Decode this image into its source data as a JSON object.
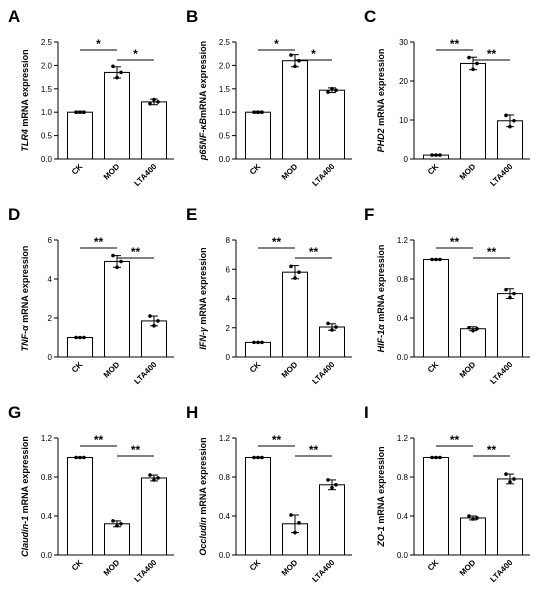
{
  "chart_data": [
    {
      "type": "bar",
      "panel_label": "A",
      "ylabel": {
        "gene": "TLR4",
        "rest": " mRNA expression"
      },
      "categories": [
        "CK",
        "MOD",
        "LTA400"
      ],
      "values": [
        1.0,
        1.85,
        1.22
      ],
      "errors": [
        0.02,
        0.12,
        0.06
      ],
      "points": [
        [
          1.0,
          1.0,
          1.0
        ],
        [
          1.98,
          1.74,
          1.85
        ],
        [
          1.18,
          1.27,
          1.22
        ]
      ],
      "ylim": [
        0,
        2.5
      ],
      "yticks": [
        "0.0",
        "0.5",
        "1.0",
        "1.5",
        "2.0",
        "2.5"
      ],
      "significance": [
        {
          "from": 0,
          "to": 1,
          "label": "*"
        },
        {
          "from": 1,
          "to": 2,
          "label": "*"
        }
      ]
    },
    {
      "type": "bar",
      "panel_label": "B",
      "ylabel": {
        "gene": "p65NF-κB",
        "rest": "mRNA expression"
      },
      "categories": [
        "CK",
        "MOD",
        "LTA400"
      ],
      "values": [
        1.0,
        2.1,
        1.47
      ],
      "errors": [
        0.02,
        0.13,
        0.05
      ],
      "points": [
        [
          1.0,
          1.0,
          1.0
        ],
        [
          2.22,
          1.98,
          2.1
        ],
        [
          1.43,
          1.5,
          1.47
        ]
      ],
      "ylim": [
        0,
        2.5
      ],
      "yticks": [
        "0.0",
        "0.5",
        "1.0",
        "1.5",
        "2.0",
        "2.5"
      ],
      "significance": [
        {
          "from": 0,
          "to": 1,
          "label": "*"
        },
        {
          "from": 1,
          "to": 2,
          "label": "*"
        }
      ]
    },
    {
      "type": "bar",
      "panel_label": "C",
      "ylabel": {
        "gene": "PHD2",
        "rest": " mRNA expression"
      },
      "categories": [
        "CK",
        "MOD",
        "LTA400"
      ],
      "values": [
        1.0,
        24.5,
        9.8
      ],
      "errors": [
        0.1,
        1.6,
        1.5
      ],
      "points": [
        [
          1.0,
          1.0,
          1.0
        ],
        [
          26.0,
          23.0,
          24.5
        ],
        [
          11.2,
          8.3,
          9.8
        ]
      ],
      "ylim": [
        0,
        30
      ],
      "yticks": [
        "0",
        "10",
        "20",
        "30"
      ],
      "significance": [
        {
          "from": 0,
          "to": 1,
          "label": "**"
        },
        {
          "from": 1,
          "to": 2,
          "label": "**"
        }
      ]
    },
    {
      "type": "bar",
      "panel_label": "D",
      "ylabel": {
        "gene": "TNF-α",
        "rest": " mRNA expression"
      },
      "categories": [
        "CK",
        "MOD",
        "LTA400"
      ],
      "values": [
        1.0,
        4.9,
        1.85
      ],
      "errors": [
        0.02,
        0.3,
        0.25
      ],
      "points": [
        [
          1.0,
          1.0,
          1.0
        ],
        [
          5.2,
          4.6,
          4.9
        ],
        [
          2.1,
          1.6,
          1.85
        ]
      ],
      "ylim": [
        0,
        6
      ],
      "yticks": [
        "0",
        "2",
        "4",
        "6"
      ],
      "significance": [
        {
          "from": 0,
          "to": 1,
          "label": "**"
        },
        {
          "from": 1,
          "to": 2,
          "label": "**"
        }
      ]
    },
    {
      "type": "bar",
      "panel_label": "E",
      "ylabel": {
        "gene": "IFN-γ",
        "rest": " mRNA expression"
      },
      "categories": [
        "CK",
        "MOD",
        "LTA400"
      ],
      "values": [
        1.0,
        5.8,
        2.05
      ],
      "errors": [
        0.02,
        0.45,
        0.22
      ],
      "points": [
        [
          1.0,
          1.0,
          1.0
        ],
        [
          6.2,
          5.4,
          5.8
        ],
        [
          2.3,
          1.85,
          2.05
        ]
      ],
      "ylim": [
        0,
        8
      ],
      "yticks": [
        "0",
        "2",
        "4",
        "6",
        "8"
      ],
      "significance": [
        {
          "from": 0,
          "to": 1,
          "label": "**"
        },
        {
          "from": 1,
          "to": 2,
          "label": "**"
        }
      ]
    },
    {
      "type": "bar",
      "panel_label": "F",
      "ylabel": {
        "gene": "HIF-1α",
        "rest": " mRNA expression"
      },
      "categories": [
        "CK",
        "MOD",
        "LTA400"
      ],
      "values": [
        1.0,
        0.29,
        0.65
      ],
      "errors": [
        0.005,
        0.02,
        0.05
      ],
      "points": [
        [
          1.0,
          1.0,
          1.0
        ],
        [
          0.3,
          0.27,
          0.29
        ],
        [
          0.69,
          0.61,
          0.65
        ]
      ],
      "ylim": [
        0,
        1.2
      ],
      "yticks": [
        "0.0",
        "0.4",
        "0.8",
        "1.2"
      ],
      "significance": [
        {
          "from": 0,
          "to": 1,
          "label": "**"
        },
        {
          "from": 1,
          "to": 2,
          "label": "**"
        }
      ]
    },
    {
      "type": "bar",
      "panel_label": "G",
      "ylabel": {
        "gene": "Claudin-1",
        "rest": " mRNA expression"
      },
      "categories": [
        "CK",
        "MOD",
        "LTA400"
      ],
      "values": [
        1.0,
        0.32,
        0.79
      ],
      "errors": [
        0.005,
        0.03,
        0.03
      ],
      "points": [
        [
          1.0,
          1.0,
          1.0
        ],
        [
          0.35,
          0.3,
          0.32
        ],
        [
          0.82,
          0.77,
          0.79
        ]
      ],
      "ylim": [
        0,
        1.2
      ],
      "yticks": [
        "0.0",
        "0.4",
        "0.8",
        "1.2"
      ],
      "significance": [
        {
          "from": 0,
          "to": 1,
          "label": "**"
        },
        {
          "from": 1,
          "to": 2,
          "label": "**"
        }
      ]
    },
    {
      "type": "bar",
      "panel_label": "H",
      "ylabel": {
        "gene": "Occludin",
        "rest": " mRNA expression"
      },
      "categories": [
        "CK",
        "MOD",
        "LTA400"
      ],
      "values": [
        1.0,
        0.32,
        0.72
      ],
      "errors": [
        0.005,
        0.09,
        0.05
      ],
      "points": [
        [
          1.0,
          1.0,
          1.0
        ],
        [
          0.41,
          0.23,
          0.33
        ],
        [
          0.77,
          0.69,
          0.72
        ]
      ],
      "ylim": [
        0,
        1.2
      ],
      "yticks": [
        "0.0",
        "0.4",
        "0.8",
        "1.2"
      ],
      "significance": [
        {
          "from": 0,
          "to": 1,
          "label": "**"
        },
        {
          "from": 1,
          "to": 2,
          "label": "**"
        }
      ]
    },
    {
      "type": "bar",
      "panel_label": "I",
      "ylabel": {
        "gene": "ZO-1",
        "rest": " mRNA expression"
      },
      "categories": [
        "CK",
        "MOD",
        "LTA400"
      ],
      "values": [
        1.0,
        0.38,
        0.78
      ],
      "errors": [
        0.005,
        0.02,
        0.05
      ],
      "points": [
        [
          1.0,
          1.0,
          1.0
        ],
        [
          0.4,
          0.37,
          0.38
        ],
        [
          0.83,
          0.75,
          0.78
        ]
      ],
      "ylim": [
        0,
        1.2
      ],
      "yticks": [
        "0.0",
        "0.4",
        "0.8",
        "1.2"
      ],
      "significance": [
        {
          "from": 0,
          "to": 1,
          "label": "**"
        },
        {
          "from": 1,
          "to": 2,
          "label": "**"
        }
      ]
    }
  ]
}
